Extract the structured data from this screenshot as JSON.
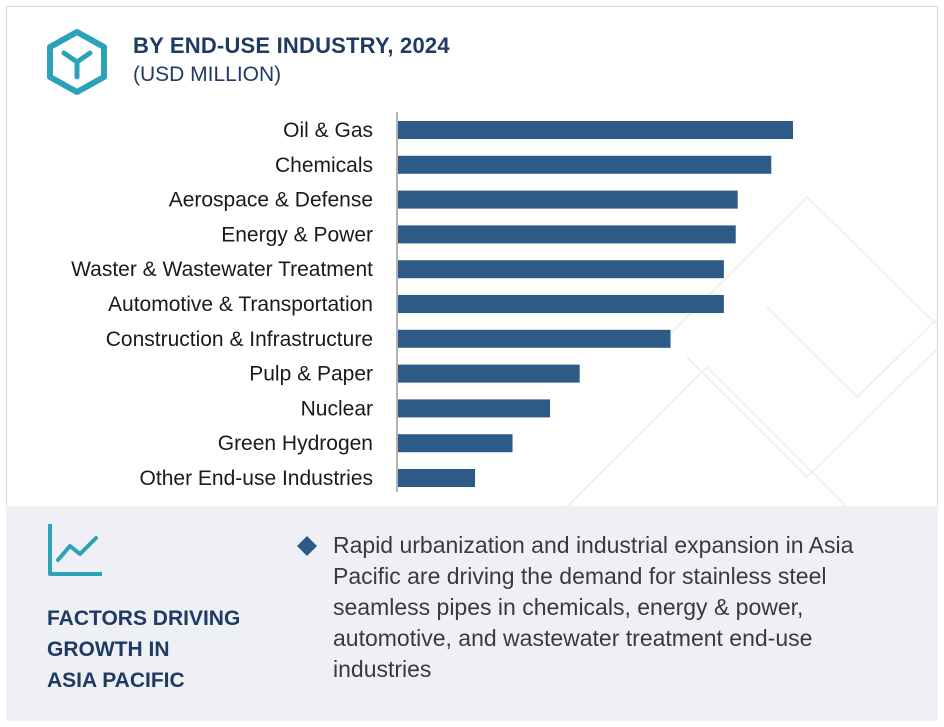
{
  "header": {
    "title": "BY END-USE INDUSTRY, 2024",
    "subtitle": "(USD MILLION)",
    "icon": "cube-icon"
  },
  "colors": {
    "bar": "#2e5a88",
    "accent": "#2aa3b8",
    "title": "#1f3b63",
    "footer_bg": "#eef0f5"
  },
  "chart_data": {
    "type": "bar",
    "orientation": "horizontal",
    "categories": [
      "Oil & Gas",
      "Chemicals",
      "Aerospace & Defense",
      "Energy & Power",
      "Waster & Wastewater Treatment",
      "Automotive & Transportation",
      "Construction & Infrastructure",
      "Pulp & Paper",
      "Nuclear",
      "Green Hydrogen",
      "Other End-use Industries"
    ],
    "values": [
      100,
      94.5,
      86,
      85.5,
      82.5,
      82.5,
      69,
      46,
      38.5,
      29,
      19.5
    ],
    "title": "BY END-USE INDUSTRY, 2024",
    "subtitle": "(USD MILLION)",
    "xlabel": "",
    "ylabel": "",
    "xlim": [
      0,
      100
    ],
    "grid": false,
    "axis_ticks": false
  },
  "footer": {
    "icon": "trend-chart-icon",
    "heading_lines": [
      "FACTORS DRIVING",
      "GROWTH IN",
      "ASIA PACIFIC"
    ],
    "bullet_icon": "diamond-bullet-icon",
    "bullet_text": "Rapid urbanization and industrial expansion in Asia Pacific are driving the demand for stainless steel seamless pipes in chemicals, energy & power, automotive, and wastewater treatment end-use industries"
  }
}
